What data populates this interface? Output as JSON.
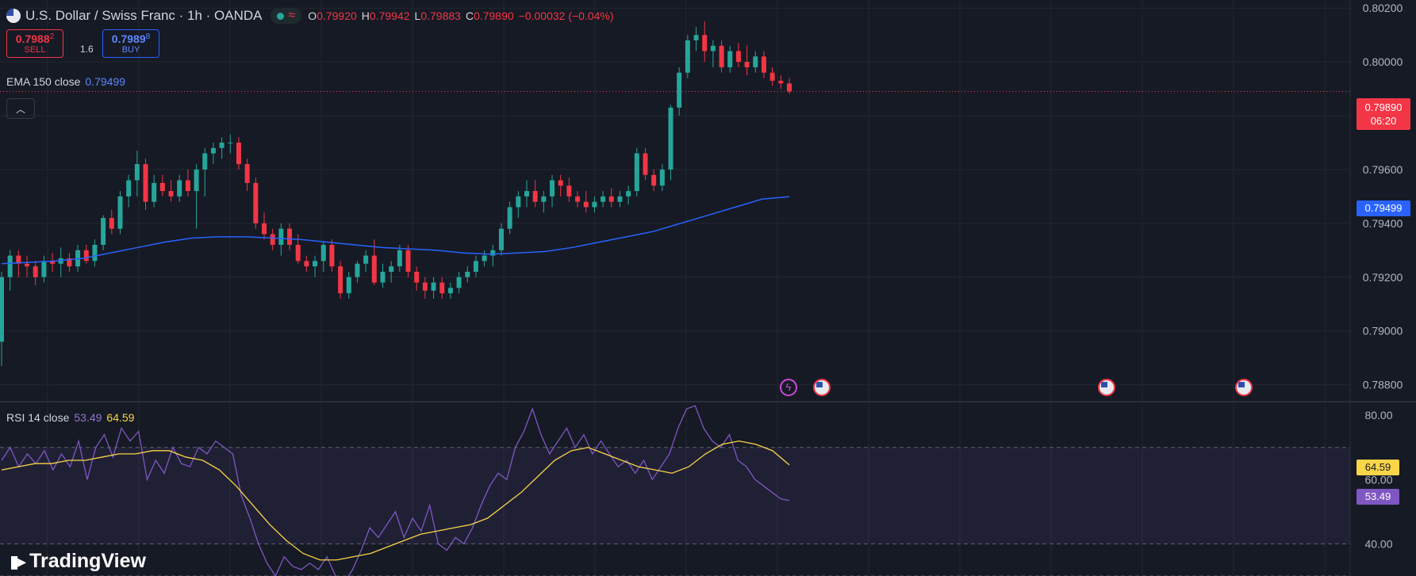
{
  "header": {
    "title": "U.S. Dollar / Swiss Franc · 1h · OANDA",
    "status_icon": "market-open-dot",
    "ohlc": [
      {
        "key": "O",
        "value": "0.79920"
      },
      {
        "key": "H",
        "value": "0.79942"
      },
      {
        "key": "L",
        "value": "0.79883"
      },
      {
        "key": "C",
        "value": "0.79890"
      }
    ],
    "change": "−0.00032 (−0.04%)"
  },
  "trade": {
    "sell_price": "0.7988",
    "sell_pip": "2",
    "sell_label": "SELL",
    "spread": "1.6",
    "buy_price": "0.7989",
    "buy_pip": "8",
    "buy_label": "BUY"
  },
  "ema_legend": {
    "label": "EMA 150 close",
    "value": "0.79499"
  },
  "rsi_legend": {
    "label": "RSI 14 close",
    "value": "53.49",
    "ma_value": "64.59"
  },
  "price_badges": {
    "last_price": "0.79890",
    "countdown": "06:20",
    "ema": "0.79499"
  },
  "rsi_badges": {
    "ma": "64.59",
    "rsi": "53.49"
  },
  "brand": {
    "name": "TradingView"
  },
  "colors": {
    "background": "#161a25",
    "up": "#26a69a",
    "down": "#f23645",
    "ema": "#2962ff",
    "rsi": "#7e57c2",
    "rsi_ma": "#f9d548",
    "grid": "#22262f"
  },
  "chart_data": [
    {
      "type": "candlestick",
      "symbol": "USDCHF",
      "timeframe": "1h",
      "y_ticks": [
        "0.80200",
        "0.80000",
        "0.79800",
        "0.79600",
        "0.79400",
        "0.79200",
        "0.79000",
        "0.78800"
      ],
      "ylim": [
        0.7874,
        0.8023
      ],
      "grid": true,
      "last_price": 0.7989,
      "candles": [
        [
          0.7896,
          0.7922,
          0.7887,
          0.792
        ],
        [
          0.792,
          0.793,
          0.7915,
          0.7928
        ],
        [
          0.7928,
          0.793,
          0.792,
          0.7925
        ],
        [
          0.7925,
          0.7928,
          0.792,
          0.7924
        ],
        [
          0.7924,
          0.7926,
          0.7917,
          0.792
        ],
        [
          0.792,
          0.7928,
          0.7918,
          0.7926
        ],
        [
          0.7926,
          0.7929,
          0.7922,
          0.7925
        ],
        [
          0.7925,
          0.7931,
          0.792,
          0.7927
        ],
        [
          0.7927,
          0.7929,
          0.7922,
          0.7924
        ],
        [
          0.7924,
          0.7932,
          0.7922,
          0.793
        ],
        [
          0.793,
          0.7932,
          0.7925,
          0.7926
        ],
        [
          0.7926,
          0.7934,
          0.7924,
          0.7932
        ],
        [
          0.7932,
          0.7943,
          0.793,
          0.7942
        ],
        [
          0.7942,
          0.7945,
          0.7936,
          0.7938
        ],
        [
          0.7938,
          0.7952,
          0.7936,
          0.795
        ],
        [
          0.795,
          0.7958,
          0.7946,
          0.7956
        ],
        [
          0.7956,
          0.7967,
          0.795,
          0.7962
        ],
        [
          0.7962,
          0.7964,
          0.7945,
          0.7948
        ],
        [
          0.7948,
          0.7958,
          0.7946,
          0.7955
        ],
        [
          0.7955,
          0.7958,
          0.795,
          0.7952
        ],
        [
          0.7952,
          0.7956,
          0.7948,
          0.795
        ],
        [
          0.795,
          0.7958,
          0.7948,
          0.7956
        ],
        [
          0.7956,
          0.796,
          0.795,
          0.7952
        ],
        [
          0.7952,
          0.7962,
          0.7938,
          0.796
        ],
        [
          0.796,
          0.7968,
          0.795,
          0.7966
        ],
        [
          0.7966,
          0.797,
          0.7962,
          0.7968
        ],
        [
          0.7968,
          0.7972,
          0.7964,
          0.797
        ],
        [
          0.797,
          0.7973,
          0.7966,
          0.797
        ],
        [
          0.797,
          0.7972,
          0.796,
          0.7962
        ],
        [
          0.7962,
          0.7964,
          0.7952,
          0.7955
        ],
        [
          0.7955,
          0.7957,
          0.7938,
          0.794
        ],
        [
          0.794,
          0.7944,
          0.7934,
          0.7936
        ],
        [
          0.7936,
          0.7938,
          0.793,
          0.7932
        ],
        [
          0.7932,
          0.794,
          0.7928,
          0.7938
        ],
        [
          0.7938,
          0.794,
          0.793,
          0.7932
        ],
        [
          0.7932,
          0.7936,
          0.7925,
          0.7926
        ],
        [
          0.7926,
          0.7928,
          0.7922,
          0.7924
        ],
        [
          0.7924,
          0.7928,
          0.792,
          0.7926
        ],
        [
          0.7926,
          0.7933,
          0.7922,
          0.7932
        ],
        [
          0.7932,
          0.7934,
          0.7922,
          0.7924
        ],
        [
          0.7924,
          0.7926,
          0.7912,
          0.7914
        ],
        [
          0.7914,
          0.7922,
          0.7912,
          0.792
        ],
        [
          0.792,
          0.7926,
          0.7918,
          0.7925
        ],
        [
          0.7925,
          0.793,
          0.7922,
          0.7928
        ],
        [
          0.7928,
          0.7934,
          0.7917,
          0.7918
        ],
        [
          0.7918,
          0.7925,
          0.7916,
          0.7922
        ],
        [
          0.7922,
          0.7926,
          0.7918,
          0.7924
        ],
        [
          0.7924,
          0.7932,
          0.7922,
          0.793
        ],
        [
          0.793,
          0.7932,
          0.792,
          0.7922
        ],
        [
          0.7922,
          0.7924,
          0.7915,
          0.7918
        ],
        [
          0.7918,
          0.792,
          0.7912,
          0.7915
        ],
        [
          0.7915,
          0.792,
          0.7912,
          0.7918
        ],
        [
          0.7918,
          0.792,
          0.7912,
          0.7914
        ],
        [
          0.7914,
          0.7918,
          0.7912,
          0.7916
        ],
        [
          0.7916,
          0.7922,
          0.7914,
          0.792
        ],
        [
          0.792,
          0.7924,
          0.7918,
          0.7922
        ],
        [
          0.7922,
          0.7928,
          0.792,
          0.7926
        ],
        [
          0.7926,
          0.793,
          0.7924,
          0.7928
        ],
        [
          0.7928,
          0.7932,
          0.7924,
          0.793
        ],
        [
          0.793,
          0.794,
          0.7928,
          0.7938
        ],
        [
          0.7938,
          0.7948,
          0.7936,
          0.7946
        ],
        [
          0.7946,
          0.7952,
          0.7942,
          0.795
        ],
        [
          0.795,
          0.7956,
          0.7946,
          0.7952
        ],
        [
          0.7952,
          0.7956,
          0.7946,
          0.7948
        ],
        [
          0.7948,
          0.7952,
          0.7944,
          0.795
        ],
        [
          0.795,
          0.7958,
          0.7946,
          0.7956
        ],
        [
          0.7956,
          0.7958,
          0.795,
          0.7954
        ],
        [
          0.7954,
          0.7957,
          0.7948,
          0.795
        ],
        [
          0.795,
          0.7952,
          0.7946,
          0.7948
        ],
        [
          0.7948,
          0.7952,
          0.7944,
          0.7946
        ],
        [
          0.7946,
          0.795,
          0.7944,
          0.7948
        ],
        [
          0.7948,
          0.7952,
          0.7946,
          0.795
        ],
        [
          0.795,
          0.7953,
          0.7946,
          0.7948
        ],
        [
          0.7948,
          0.7952,
          0.7946,
          0.795
        ],
        [
          0.795,
          0.7954,
          0.7947,
          0.7952
        ],
        [
          0.7952,
          0.7968,
          0.795,
          0.7966
        ],
        [
          0.7966,
          0.7968,
          0.7956,
          0.7958
        ],
        [
          0.7958,
          0.796,
          0.7952,
          0.7954
        ],
        [
          0.7954,
          0.7962,
          0.7952,
          0.796
        ],
        [
          0.796,
          0.7984,
          0.7956,
          0.7983
        ],
        [
          0.7983,
          0.7998,
          0.798,
          0.7996
        ],
        [
          0.7996,
          0.801,
          0.7994,
          0.8008
        ],
        [
          0.8008,
          0.8013,
          0.8004,
          0.801
        ],
        [
          0.801,
          0.8015,
          0.8,
          0.8004
        ],
        [
          0.8004,
          0.8008,
          0.7998,
          0.8006
        ],
        [
          0.8006,
          0.8008,
          0.7996,
          0.7998
        ],
        [
          0.7998,
          0.8006,
          0.7996,
          0.8004
        ],
        [
          0.8004,
          0.8007,
          0.7998,
          0.8
        ],
        [
          0.8,
          0.8006,
          0.7995,
          0.7998
        ],
        [
          0.7998,
          0.8004,
          0.7996,
          0.8002
        ],
        [
          0.8002,
          0.8004,
          0.7994,
          0.7996
        ],
        [
          0.7996,
          0.7998,
          0.7991,
          0.7993
        ],
        [
          0.7993,
          0.7995,
          0.799,
          0.7992
        ],
        [
          0.7992,
          0.7994,
          0.7988,
          0.7989
        ]
      ],
      "ema": {
        "name": "EMA 150 close",
        "values": [
          0.7925,
          0.79255,
          0.7926,
          0.7927,
          0.7929,
          0.7931,
          0.7933,
          0.79345,
          0.7935,
          0.7935,
          0.79345,
          0.7934,
          0.7933,
          0.7932,
          0.7931,
          0.79305,
          0.793,
          0.7929,
          0.79285,
          0.7929,
          0.79295,
          0.7931,
          0.7933,
          0.7935,
          0.7937,
          0.794,
          0.7943,
          0.7946,
          0.7949,
          0.79499
        ]
      }
    },
    {
      "type": "line",
      "name": "RSI 14 close",
      "y_ticks": [
        "80.00",
        "60.00",
        "40.00"
      ],
      "ylim": [
        30,
        84
      ],
      "band": [
        40,
        70
      ],
      "series": [
        {
          "name": "RSI 14",
          "values": [
            66,
            70,
            64,
            68,
            65,
            69,
            63,
            68,
            64,
            72,
            60,
            70,
            74,
            67,
            76,
            72,
            75,
            60,
            66,
            62,
            70,
            65,
            64,
            70,
            68,
            72,
            70,
            68,
            55,
            48,
            40,
            34,
            30,
            36,
            33,
            32,
            34,
            32,
            36,
            30,
            28,
            32,
            38,
            45,
            42,
            46,
            50,
            42,
            48,
            44,
            52,
            40,
            38,
            42,
            40,
            45,
            52,
            58,
            62,
            60,
            70,
            75,
            82,
            74,
            68,
            72,
            76,
            70,
            74,
            68,
            72,
            68,
            64,
            66,
            62,
            66,
            60,
            64,
            68,
            76,
            82,
            83,
            76,
            72,
            70,
            74,
            66,
            64,
            60,
            58,
            56,
            54,
            53.49
          ]
        },
        {
          "name": "MA",
          "values": [
            63,
            64,
            65,
            65,
            66,
            66,
            67,
            68,
            68,
            69,
            69,
            67,
            66,
            63,
            58,
            52,
            46,
            41,
            37,
            35,
            35,
            36,
            37,
            39,
            41,
            43,
            44,
            45,
            46,
            48,
            52,
            56,
            61,
            66,
            69,
            70,
            68,
            66,
            64,
            63,
            62,
            64,
            68,
            71,
            72,
            71,
            69,
            64.59
          ]
        }
      ]
    }
  ]
}
